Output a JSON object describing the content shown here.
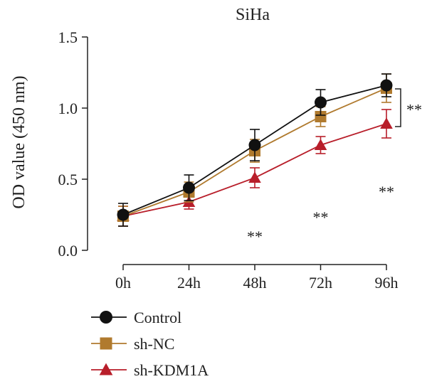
{
  "chart_data": {
    "type": "line",
    "title": "SiHa",
    "xlabel": "",
    "ylabel": "OD value (450 nm)",
    "categories": [
      "0h",
      "24h",
      "48h",
      "72h",
      "96h"
    ],
    "ylim": [
      0,
      1.5
    ],
    "yticks": [
      "0.0",
      "0.5",
      "1.0",
      "1.5"
    ],
    "grid": false,
    "legend_position": "bottom-left",
    "series": [
      {
        "name": "Control",
        "color": "#111111",
        "marker": "circle",
        "values": [
          0.25,
          0.44,
          0.74,
          1.04,
          1.16
        ],
        "errors": [
          0.08,
          0.09,
          0.11,
          0.09,
          0.08
        ]
      },
      {
        "name": "sh-NC",
        "color": "#b07a2e",
        "marker": "square",
        "values": [
          0.24,
          0.41,
          0.7,
          0.94,
          1.14
        ],
        "errors": [
          0.07,
          0.07,
          0.08,
          0.07,
          0.1
        ]
      },
      {
        "name": "sh-KDM1A",
        "color": "#b81e2a",
        "marker": "triangle",
        "values": [
          0.24,
          0.34,
          0.51,
          0.74,
          0.89
        ],
        "errors": [
          0.07,
          0.05,
          0.07,
          0.06,
          0.1
        ]
      }
    ],
    "annotations": [
      {
        "category": "48h",
        "text": "**"
      },
      {
        "category": "72h",
        "text": "**"
      },
      {
        "category": "96h",
        "text": "**"
      }
    ],
    "bracket_label": "**"
  }
}
